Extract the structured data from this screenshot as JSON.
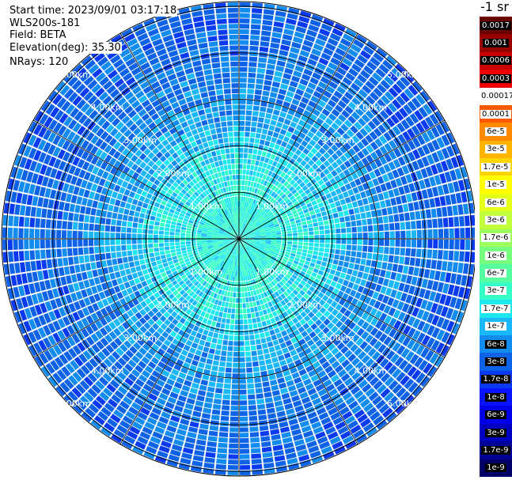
{
  "header": {
    "start_time": "Start time: 2023/09/01 03:17:18",
    "instrument": "WLS200s-181",
    "field": "Field: BETA",
    "elevation": "Elevation(deg): 35.30",
    "nrays": "NRays: 120"
  },
  "colorbar": {
    "unit_label": "-1 sr",
    "labels": [
      "0.0017",
      "0.001",
      "0.0006",
      "0.0003",
      "0.00017",
      "0.0001",
      "6e-5",
      "3e-5",
      "1.7e-5",
      "1e-5",
      "6e-6",
      "3e-6",
      "1.7e-6",
      "1e-6",
      "6e-7",
      "3e-7",
      "1.7e-7",
      "1e-7",
      "6e-8",
      "3e-8",
      "1.7e-8",
      "1e-8",
      "6e-9",
      "3e-9",
      "1.7e-9",
      "1e-9"
    ],
    "colors": [
      "#6a0000",
      "#9a0000",
      "#c80000",
      "#ee0000",
      "#ffffff",
      "#ff5a00",
      "#ff8a00",
      "#ffb400",
      "#ffd500",
      "#ffff00",
      "#e4ff18",
      "#c2ff3c",
      "#9cff5e",
      "#79ff80",
      "#55ffa0",
      "#35ffc4",
      "#1ee8ee",
      "#1ab8f8",
      "#138cf0",
      "#0e62e6",
      "#0a3af0",
      "#0814ff",
      "#0000e8",
      "#0000c2",
      "#000096",
      "#000066"
    ]
  },
  "chart_data": {
    "type": "heatmap",
    "projection": "polar",
    "field": "BETA",
    "elevation_deg": 35.3,
    "n_rays": 120,
    "rings_km": [
      1.0,
      2.0,
      3.0,
      4.0,
      5.0
    ],
    "ring_labels": [
      "1.00km",
      "2.00km",
      "3.00km",
      "4.00km",
      "5.00km"
    ],
    "max_range_km": 5.1,
    "spoke_step_deg": 30,
    "range_gates": 44,
    "beta_profile_vs_range_km": [
      [
        0.0,
        3e-07
      ],
      [
        1.0,
        3e-07
      ],
      [
        2.0,
        1.7e-07
      ],
      [
        2.5,
        1e-07
      ],
      [
        3.0,
        8e-08
      ],
      [
        4.0,
        5e-08
      ],
      [
        5.0,
        4e-08
      ]
    ]
  }
}
